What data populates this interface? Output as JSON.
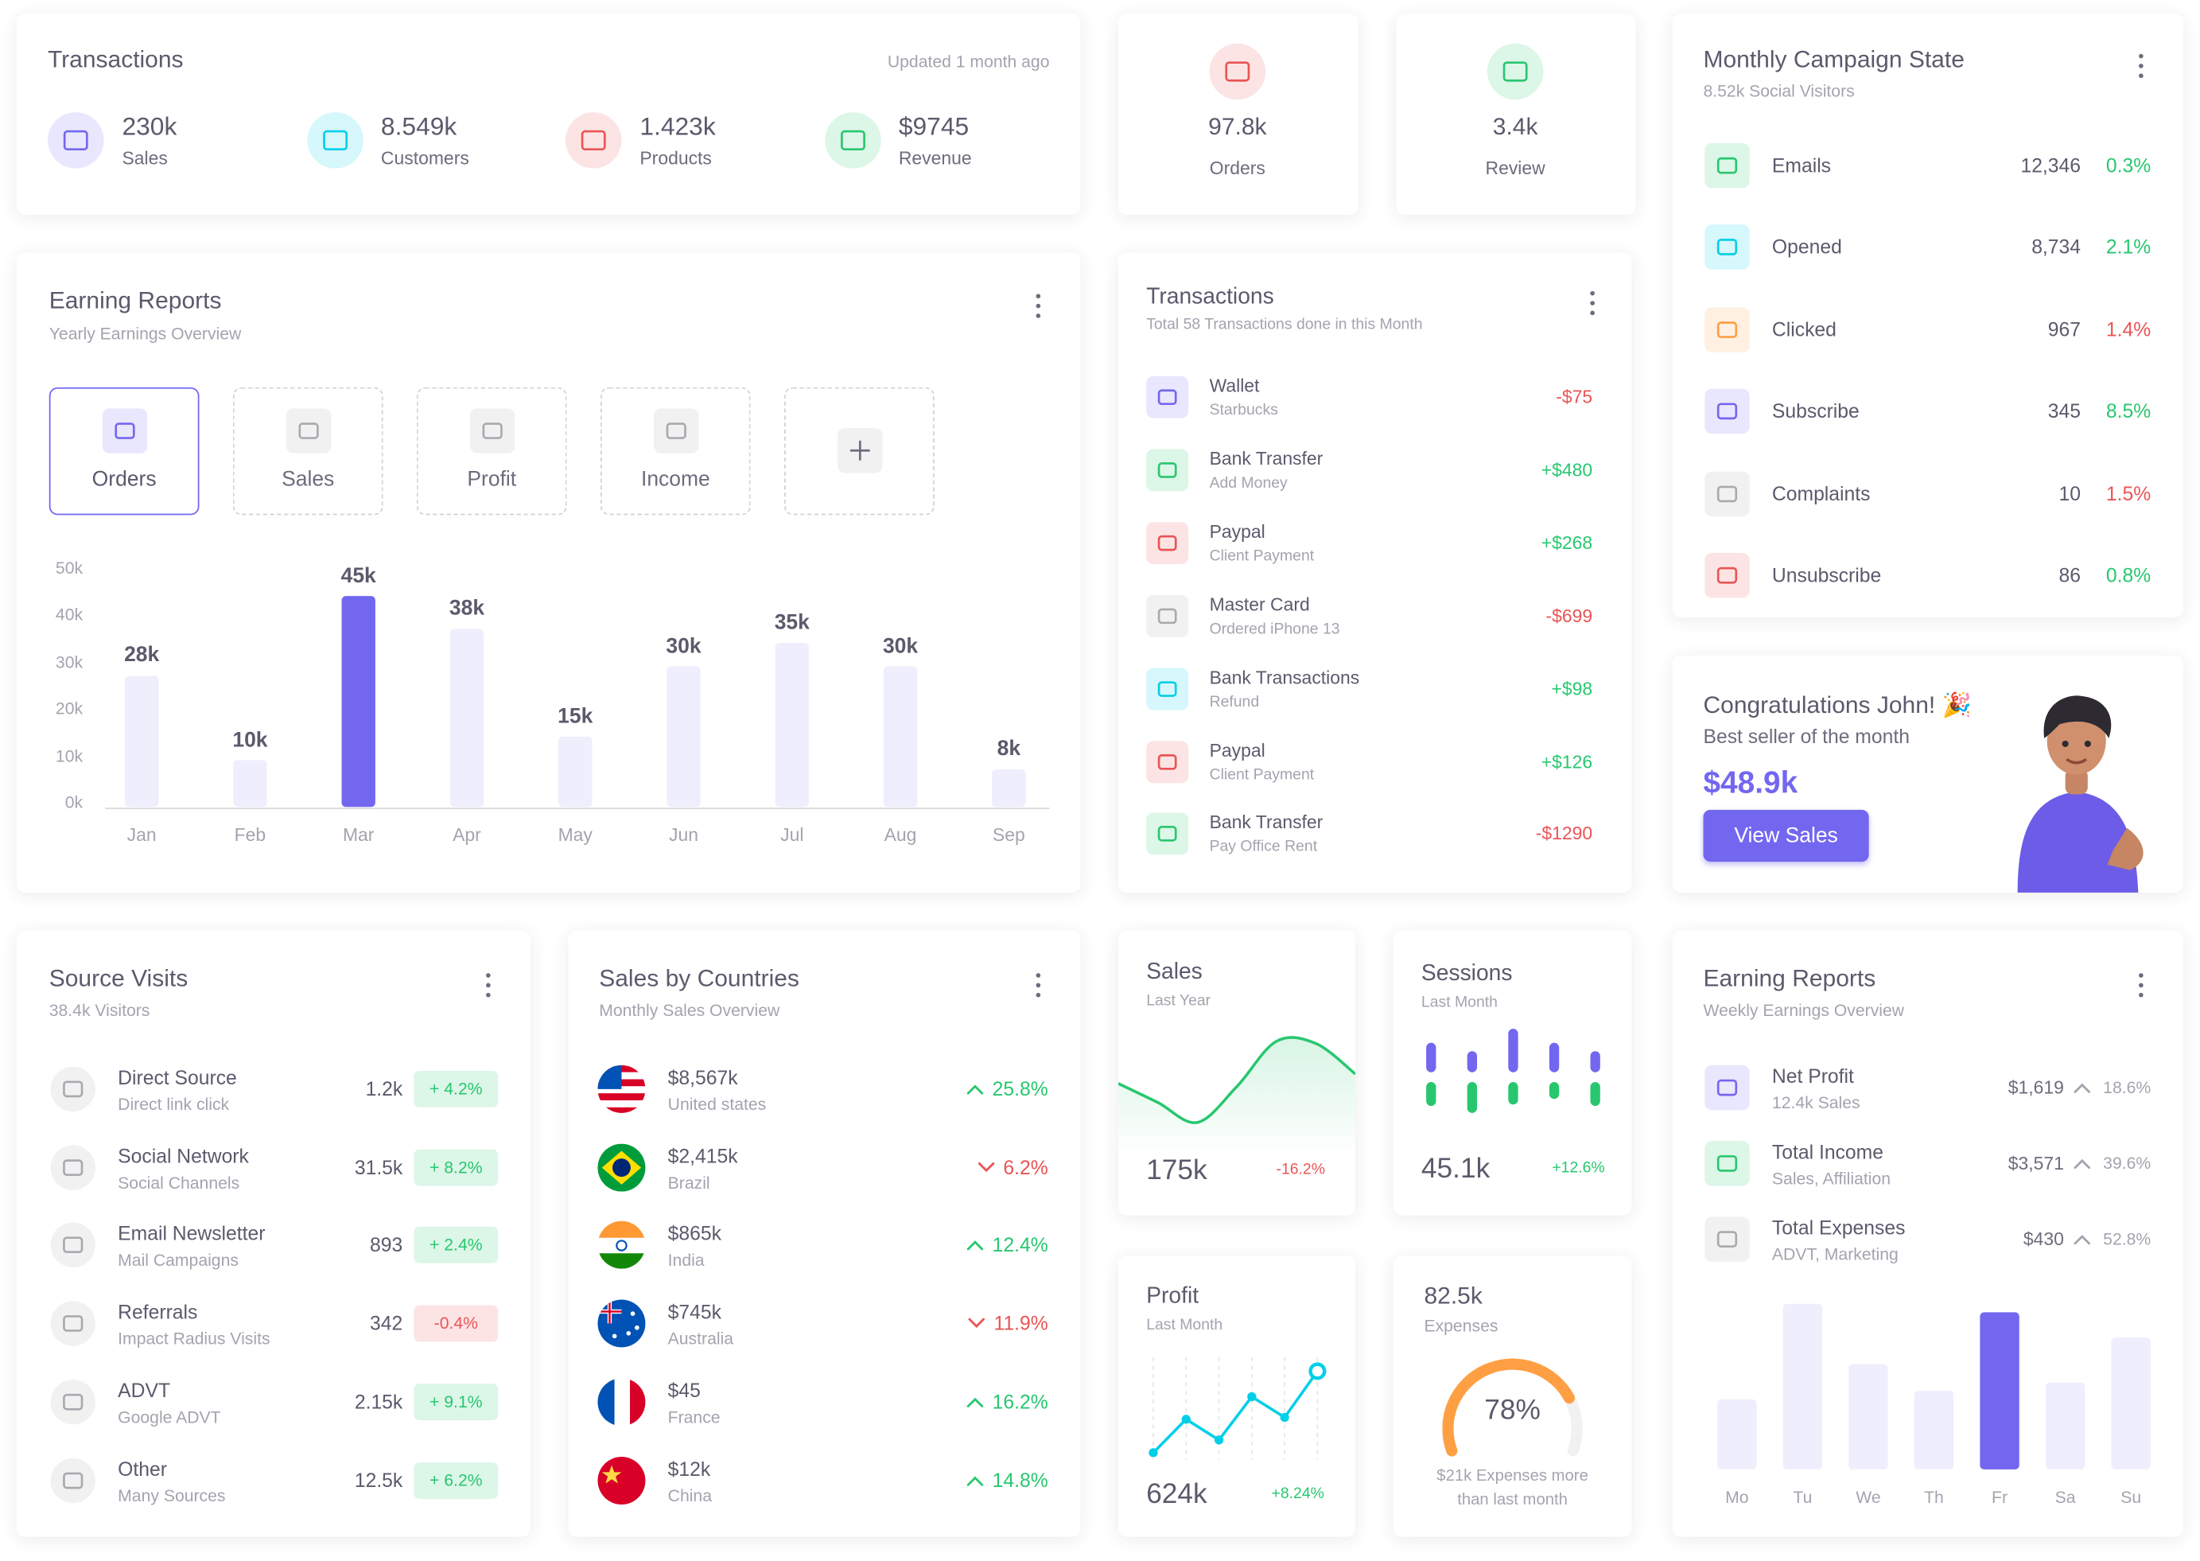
{
  "summary": {
    "title": "Transactions",
    "updated": "Updated 1 month ago",
    "stats": [
      {
        "value": "230k",
        "label": "Sales"
      },
      {
        "value": "8.549k",
        "label": "Customers"
      },
      {
        "value": "1.423k",
        "label": "Products"
      },
      {
        "value": "$9745",
        "label": "Revenue"
      }
    ]
  },
  "mini_stats": [
    {
      "value": "97.8k",
      "label": "Orders"
    },
    {
      "value": "3.4k",
      "label": "Review"
    }
  ],
  "campaign": {
    "title": "Monthly Campaign State",
    "subtitle": "8.52k Social Visitors",
    "rows": [
      {
        "name": "Emails",
        "count": "12,346",
        "percent": "0.3%",
        "color": "#28c76f"
      },
      {
        "name": "Opened",
        "count": "8,734",
        "percent": "2.1%",
        "color": "#28c76f"
      },
      {
        "name": "Clicked",
        "count": "967",
        "percent": "1.4%",
        "color": "#ea5455"
      },
      {
        "name": "Subscribe",
        "count": "345",
        "percent": "8.5%",
        "color": "#28c76f"
      },
      {
        "name": "Complaints",
        "count": "10",
        "percent": "1.5%",
        "color": "#ea5455"
      },
      {
        "name": "Unsubscribe",
        "count": "86",
        "percent": "0.8%",
        "color": "#28c76f"
      }
    ]
  },
  "earning_reports": {
    "title": "Earning Reports",
    "subtitle": "Yearly Earnings Overview",
    "tabs": [
      "Orders",
      "Sales",
      "Profit",
      "Income"
    ],
    "chart": {
      "type": "bar",
      "categories": [
        "Jan",
        "Feb",
        "Mar",
        "Apr",
        "May",
        "Jun",
        "Jul",
        "Aug",
        "Sep"
      ],
      "values": [
        28,
        10,
        45,
        38,
        15,
        30,
        35,
        30,
        8
      ],
      "value_labels": [
        "28k",
        "10k",
        "45k",
        "38k",
        "15k",
        "30k",
        "35k",
        "30k",
        "8k"
      ],
      "colors": [
        "#efeefd",
        "#efeefd",
        "#7367f0",
        "#efeefd",
        "#efeefd",
        "#efeefd",
        "#efeefd",
        "#efeefd",
        "#efeefd"
      ],
      "ylim": [
        0,
        50
      ],
      "yticks": [
        {
          "value": 0,
          "label": "0k"
        },
        {
          "value": 10,
          "label": "10k"
        },
        {
          "value": 20,
          "label": "20k"
        },
        {
          "value": 30,
          "label": "30k"
        },
        {
          "value": 40,
          "label": "40k"
        },
        {
          "value": 50,
          "label": "50k"
        }
      ]
    }
  },
  "transactions": {
    "title": "Transactions",
    "subtitle": "Total 58 Transactions done in this Month",
    "items": [
      {
        "name": "Wallet",
        "detail": "Starbucks",
        "amount": "-$75"
      },
      {
        "name": "Bank Transfer",
        "detail": "Add Money",
        "amount": "+$480"
      },
      {
        "name": "Paypal",
        "detail": "Client Payment",
        "amount": "+$268"
      },
      {
        "name": "Master Card",
        "detail": "Ordered iPhone 13",
        "amount": "-$699"
      },
      {
        "name": "Bank Transactions",
        "detail": "Refund",
        "amount": "+$98"
      },
      {
        "name": "Paypal",
        "detail": "Client Payment",
        "amount": "+$126"
      },
      {
        "name": "Bank Transfer",
        "detail": "Pay Office Rent",
        "amount": "-$1290"
      }
    ]
  },
  "congrats": {
    "title": "Congratulations John! 🎉",
    "subtitle": "Best seller of the month",
    "amount": "$48.9k",
    "button": "View Sales"
  },
  "source_visits": {
    "title": "Source Visits",
    "subtitle": "38.4k Visitors",
    "rows": [
      {
        "name": "Direct Source",
        "detail": "Direct link click",
        "value": "1.2k",
        "change": "+ 4.2%"
      },
      {
        "name": "Social Network",
        "detail": "Social Channels",
        "value": "31.5k",
        "change": "+ 8.2%"
      },
      {
        "name": "Email Newsletter",
        "detail": "Mail Campaigns",
        "value": "893",
        "change": "+ 2.4%"
      },
      {
        "name": "Referrals",
        "detail": "Impact Radius Visits",
        "value": "342",
        "change": "-0.4%"
      },
      {
        "name": "ADVT",
        "detail": "Google ADVT",
        "value": "2.15k",
        "change": "+ 9.1%"
      },
      {
        "name": "Other",
        "detail": "Many Sources",
        "value": "12.5k",
        "change": "+ 6.2%"
      }
    ]
  },
  "sales_by_countries": {
    "title": "Sales by Countries",
    "subtitle": "Monthly Sales Overview",
    "rows": [
      {
        "amount": "$8,567k",
        "country": "United states",
        "change": "25.8%",
        "trend": "up"
      },
      {
        "amount": "$2,415k",
        "country": "Brazil",
        "change": "6.2%",
        "trend": "down"
      },
      {
        "amount": "$865k",
        "country": "India",
        "change": "12.4%",
        "trend": "up"
      },
      {
        "amount": "$745k",
        "country": "Australia",
        "change": "11.9%",
        "trend": "down"
      },
      {
        "amount": "$45",
        "country": "France",
        "change": "16.2%",
        "trend": "up"
      },
      {
        "amount": "$12k",
        "country": "China",
        "change": "14.8%",
        "trend": "up"
      }
    ]
  },
  "sales_card": {
    "title": "Sales",
    "subtitle": "Last Year",
    "value": "175k",
    "change": "-16.2%",
    "chart": {
      "type": "line",
      "values": [
        48,
        30,
        11,
        45,
        88,
        86,
        57
      ],
      "ylim": [
        0,
        100
      ],
      "color": "#28c76f"
    }
  },
  "sessions_card": {
    "title": "Sessions",
    "subtitle": "Last Month",
    "value": "45.1k",
    "change": "+12.6%",
    "chart": {
      "type": "bar",
      "series": [
        {
          "values": [
            21,
            15,
            31,
            21,
            15
          ],
          "color": "#7367f0"
        },
        {
          "values": [
            17,
            22,
            16,
            12,
            17
          ],
          "color": "#28c76f"
        }
      ]
    }
  },
  "profit_card": {
    "title": "Profit",
    "subtitle": "Last Month",
    "value": "624k",
    "change": "+8.24%",
    "chart": {
      "type": "line",
      "values": [
        7,
        41,
        20,
        64,
        43,
        90
      ],
      "ylim": [
        0,
        100
      ],
      "color": "#00cfe8"
    }
  },
  "expenses_card": {
    "value": "82.5k",
    "label": "Expenses",
    "gauge": {
      "value": 78,
      "value_label": "78%",
      "lim": [
        0,
        100
      ],
      "color": "#ff9f43"
    },
    "note": "$21k Expenses more than last month"
  },
  "weekly_earnings": {
    "title": "Earning Reports",
    "subtitle": "Weekly Earnings Overview",
    "rows": [
      {
        "name": "Net Profit",
        "detail": "12.4k Sales",
        "amount": "$1,619",
        "change": "18.6%"
      },
      {
        "name": "Total Income",
        "detail": "Sales, Affiliation",
        "amount": "$3,571",
        "change": "39.6%"
      },
      {
        "name": "Total Expenses",
        "detail": "ADVT, Marketing",
        "amount": "$430",
        "change": "52.8%"
      }
    ],
    "chart": {
      "type": "bar",
      "categories": [
        "Mo",
        "Tu",
        "We",
        "Th",
        "Fr",
        "Sa",
        "Su"
      ],
      "values": [
        50,
        118,
        75,
        56,
        112,
        62,
        94
      ],
      "ylim": [
        0,
        120
      ],
      "colors": [
        "#efeefd",
        "#efeefd",
        "#efeefd",
        "#efeefd",
        "#7367f0",
        "#efeefd",
        "#efeefd"
      ]
    }
  }
}
